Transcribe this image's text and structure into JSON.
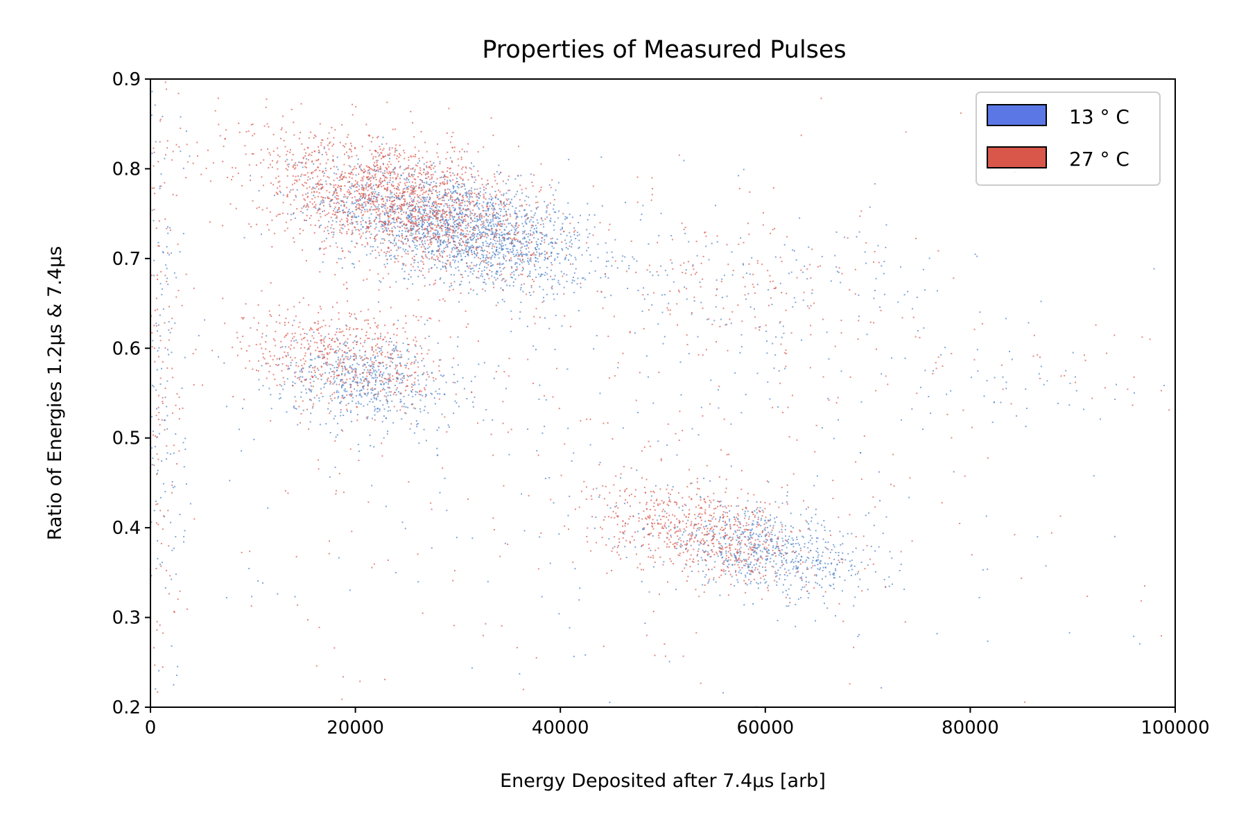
{
  "chart_data": {
    "type": "scatter",
    "title": "Properties of Measured Pulses",
    "xlabel": "Energy Deposited after 7.4μs [arb]",
    "ylabel": "Ratio of Energies 1.2μs & 7.4μs",
    "xlim": [
      0,
      100000
    ],
    "ylim": [
      0.2,
      0.9
    ],
    "xticks": [
      "0",
      "20000",
      "40000",
      "60000",
      "80000",
      "100000"
    ],
    "xtick_values": [
      0,
      20000,
      40000,
      60000,
      80000,
      100000
    ],
    "yticks": [
      "0.2",
      "0.3",
      "0.4",
      "0.5",
      "0.6",
      "0.7",
      "0.8",
      "0.9"
    ],
    "ytick_values": [
      0.2,
      0.3,
      0.4,
      0.5,
      0.6,
      0.7,
      0.8,
      0.9
    ],
    "grid": false,
    "legend_position": "top-right",
    "series": [
      {
        "name": "13$^\\circ$C",
        "label": "13 ° C",
        "color": "#5b77e6",
        "point_color": "#4a7fc6",
        "clusters": [
          {
            "x_center": 30000,
            "y_center": 0.735,
            "x_spread": 6500,
            "y_spread": 0.03,
            "tilt": -2.5e-06,
            "weight": 0.46
          },
          {
            "x_center": 21000,
            "y_center": 0.565,
            "x_spread": 4500,
            "y_spread": 0.025,
            "tilt": -1e-06,
            "weight": 0.14
          },
          {
            "x_center": 60000,
            "y_center": 0.375,
            "x_spread": 5500,
            "y_spread": 0.022,
            "tilt": -2e-06,
            "weight": 0.16
          },
          {
            "x_center": 60000,
            "y_center": 0.66,
            "x_spread": 9000,
            "y_spread": 0.05,
            "tilt": 0,
            "weight": 0.04
          },
          {
            "x_center": 45000,
            "y_center": 0.45,
            "x_spread": 25000,
            "y_spread": 0.15,
            "tilt": 0,
            "weight": 0.06
          },
          {
            "x_center": 1000,
            "y_center": 0.55,
            "x_spread": 1200,
            "y_spread": 0.18,
            "tilt": 0,
            "weight": 0.04
          },
          {
            "x_center": 85000,
            "y_center": 0.56,
            "x_spread": 9000,
            "y_spread": 0.02,
            "tilt": 0,
            "weight": 0.01
          }
        ]
      },
      {
        "name": "27$^\\circ$C",
        "label": "27 ° C",
        "color": "#d9564a",
        "point_color": "#d9564a",
        "clusters": [
          {
            "x_center": 24000,
            "y_center": 0.765,
            "x_spread": 7000,
            "y_spread": 0.035,
            "tilt": -2.5e-06,
            "weight": 0.44
          },
          {
            "x_center": 19000,
            "y_center": 0.59,
            "x_spread": 5000,
            "y_spread": 0.03,
            "tilt": -1e-06,
            "weight": 0.14
          },
          {
            "x_center": 54000,
            "y_center": 0.395,
            "x_spread": 5000,
            "y_spread": 0.025,
            "tilt": -2e-06,
            "weight": 0.16
          },
          {
            "x_center": 57000,
            "y_center": 0.68,
            "x_spread": 7000,
            "y_spread": 0.05,
            "tilt": 0,
            "weight": 0.04
          },
          {
            "x_center": 45000,
            "y_center": 0.47,
            "x_spread": 25000,
            "y_spread": 0.15,
            "tilt": 0,
            "weight": 0.07
          },
          {
            "x_center": 1000,
            "y_center": 0.6,
            "x_spread": 1200,
            "y_spread": 0.18,
            "tilt": 0,
            "weight": 0.04
          },
          {
            "x_center": 85000,
            "y_center": 0.57,
            "x_spread": 9000,
            "y_spread": 0.03,
            "tilt": 0,
            "weight": 0.01
          }
        ]
      }
    ]
  }
}
